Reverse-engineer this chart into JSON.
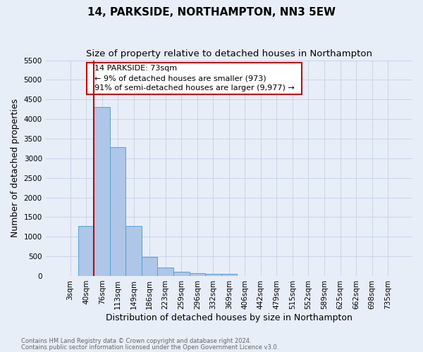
{
  "title": "14, PARKSIDE, NORTHAMPTON, NN3 5EW",
  "subtitle": "Size of property relative to detached houses in Northampton",
  "xlabel": "Distribution of detached houses by size in Northampton",
  "ylabel": "Number of detached properties",
  "footnote1": "Contains HM Land Registry data © Crown copyright and database right 2024.",
  "footnote2": "Contains public sector information licensed under the Open Government Licence v3.0.",
  "bar_labels": [
    "3sqm",
    "40sqm",
    "76sqm",
    "113sqm",
    "149sqm",
    "186sqm",
    "223sqm",
    "259sqm",
    "296sqm",
    "332sqm",
    "369sqm",
    "406sqm",
    "442sqm",
    "479sqm",
    "515sqm",
    "552sqm",
    "589sqm",
    "625sqm",
    "662sqm",
    "698sqm",
    "735sqm"
  ],
  "bar_values": [
    0,
    1270,
    4300,
    3290,
    1280,
    480,
    220,
    100,
    65,
    55,
    60,
    0,
    0,
    0,
    0,
    0,
    0,
    0,
    0,
    0,
    0
  ],
  "bar_color": "#aec6e8",
  "bar_edge_color": "#5a9fd4",
  "vline_color": "#cc0000",
  "vline_x_index": 2,
  "ylim_max": 5500,
  "yticks": [
    0,
    500,
    1000,
    1500,
    2000,
    2500,
    3000,
    3500,
    4000,
    4500,
    5000,
    5500
  ],
  "annotation_title": "14 PARKSIDE: 73sqm",
  "annotation_line1": "← 9% of detached houses are smaller (973)",
  "annotation_line2": "91% of semi-detached houses are larger (9,977) →",
  "annotation_box_facecolor": "#ffffff",
  "annotation_box_edgecolor": "#cc0000",
  "grid_color": "#c8d4e8",
  "bg_color": "#e8eef8",
  "title_fontsize": 11,
  "subtitle_fontsize": 9.5,
  "ylabel_fontsize": 9,
  "xlabel_fontsize": 9,
  "tick_fontsize": 7.5,
  "annot_fontsize": 8,
  "footnote_fontsize": 6,
  "footnote_color": "#666666"
}
